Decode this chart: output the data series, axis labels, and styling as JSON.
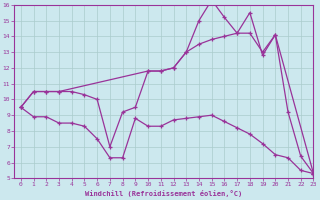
{
  "x_ticks": [
    0,
    1,
    2,
    3,
    4,
    5,
    6,
    7,
    8,
    9,
    10,
    11,
    12,
    13,
    14,
    15,
    16,
    17,
    18,
    19,
    20,
    21,
    22,
    23
  ],
  "curve1_x": [
    0,
    1,
    2,
    3,
    4,
    5,
    6,
    7,
    8,
    9,
    10,
    11,
    12,
    13,
    14,
    15,
    16,
    17,
    18,
    19,
    20,
    21,
    22,
    23
  ],
  "curve1_y": [
    9.5,
    8.9,
    8.9,
    8.5,
    8.5,
    8.3,
    7.5,
    6.3,
    6.3,
    8.8,
    8.3,
    8.3,
    8.7,
    8.8,
    8.9,
    9.0,
    8.6,
    8.2,
    7.8,
    7.2,
    6.5,
    6.3,
    5.5,
    5.3
  ],
  "curve2_x": [
    0,
    1,
    2,
    3,
    4,
    5,
    6,
    7,
    8,
    9,
    10,
    11,
    12,
    13,
    14,
    15,
    16,
    17,
    18,
    19,
    20,
    21,
    22,
    23
  ],
  "curve2_y": [
    9.5,
    10.5,
    10.5,
    10.5,
    10.5,
    10.3,
    10.0,
    7.0,
    9.2,
    9.5,
    11.8,
    11.8,
    12.0,
    13.0,
    15.0,
    16.3,
    15.2,
    14.2,
    15.5,
    12.8,
    14.1,
    9.2,
    6.4,
    5.3
  ],
  "curve3_x": [
    0,
    1,
    2,
    3,
    10,
    11,
    12,
    13,
    14,
    15,
    16,
    17,
    18,
    19,
    20,
    23
  ],
  "curve3_y": [
    9.5,
    10.5,
    10.5,
    10.5,
    11.8,
    11.8,
    12.0,
    13.0,
    13.5,
    13.8,
    14.0,
    14.2,
    14.2,
    13.0,
    14.1,
    5.3
  ],
  "ylim": [
    5,
    16
  ],
  "xlim": [
    -0.5,
    23
  ],
  "ytick_min": 5,
  "ytick_max": 16,
  "ylabel_ticks": [
    5,
    6,
    7,
    8,
    9,
    10,
    11,
    12,
    13,
    14,
    15,
    16
  ],
  "xlabel": "Windchill (Refroidissement éolien,°C)",
  "bg_color": "#cce8ee",
  "line_color": "#993399",
  "grid_color": "#aacccc",
  "spine_color": "#993399"
}
